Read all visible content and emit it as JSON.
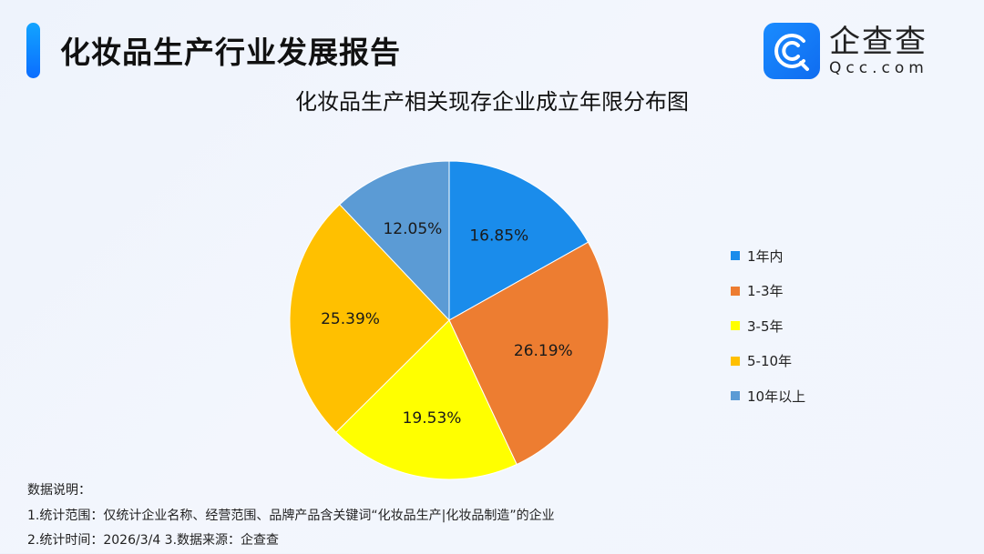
{
  "header": {
    "title": "化妆品生产行业发展报告",
    "logo_cn": "企查查",
    "logo_en": "Qcc.com"
  },
  "chart_title": "化妆品生产相关现存企业成立年限分布图",
  "chart_data": {
    "type": "pie",
    "title": "化妆品生产相关现存企业成立年限分布图",
    "categories": [
      "1年内",
      "1-3年",
      "3-5年",
      "5-10年",
      "10年以上"
    ],
    "values": [
      16.85,
      26.19,
      19.53,
      25.39,
      12.05
    ],
    "labels": [
      "16.85%",
      "26.19%",
      "19.53%",
      "25.39%",
      "12.05%"
    ],
    "colors": [
      "#1a8ceb",
      "#ed7d31",
      "#ffff00",
      "#ffc000",
      "#5b9bd5"
    ],
    "start_angle_deg": 0,
    "direction": "clockwise",
    "legend_position": "right"
  },
  "legend": [
    {
      "label": "1年内",
      "color": "#1a8ceb"
    },
    {
      "label": "1-3年",
      "color": "#ed7d31"
    },
    {
      "label": "3-5年",
      "color": "#ffff00"
    },
    {
      "label": "5-10年",
      "color": "#ffc000"
    },
    {
      "label": "10年以上",
      "color": "#5b9bd5"
    }
  ],
  "notes": {
    "heading": "数据说明：",
    "line1": "1.统计范围：仅统计企业名称、经营范围、品牌产品含关键词“化妆品生产|化妆品制造”的企业",
    "line2": "2.统计时间：2026/3/4  3.数据来源：企查查"
  }
}
